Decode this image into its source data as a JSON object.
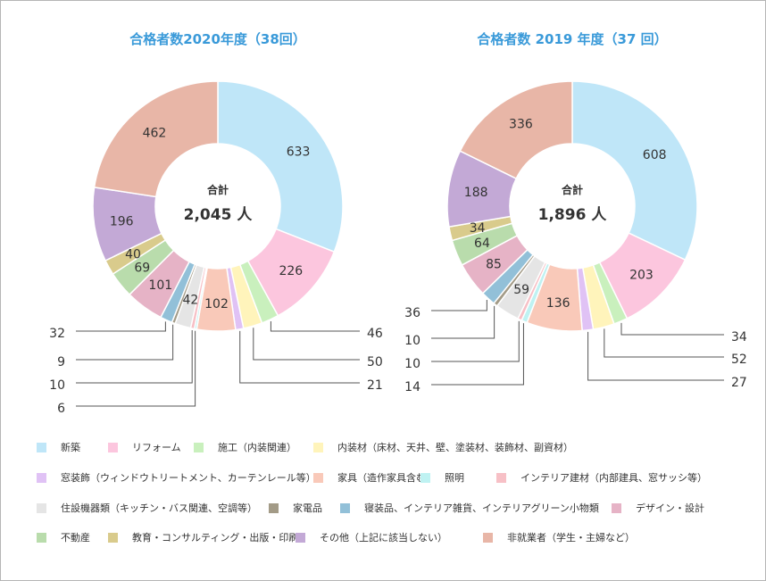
{
  "chart_data": [
    {
      "type": "pie",
      "title": "合格者数2020年度（38回）",
      "center_label": "合計",
      "center_total": "2,045 人",
      "categories": [
        "新築",
        "リフォーム",
        "施工（内装関連）",
        "内装材（床材、天井、壁、塗装材、装飾材、副資材）",
        "窓装飾（ウィンドウトリートメント、カーテンレール等）",
        "家具（造作家具含む）",
        "照明",
        "インテリア建材（内部建具、窓サッシ等）",
        "住設機器類（キッチン・バス関連、空調等）",
        "家電品",
        "寝装品、インテリア雑貨、インテリアグリーン小物類",
        "デザイン・設計",
        "不動産",
        "教育・コンサルティング・出版・印刷",
        "その他（上記に該当しない）",
        "非就業者（学生・主婦など）"
      ],
      "values": [
        633,
        226,
        46,
        50,
        21,
        102,
        6,
        10,
        42,
        9,
        32,
        101,
        69,
        40,
        196,
        462
      ]
    },
    {
      "type": "pie",
      "title": "合格者数 2019 年度（37 回）",
      "center_label": "合計",
      "center_total": "1,896 人",
      "categories": [
        "新築",
        "リフォーム",
        "施工（内装関連）",
        "内装材（床材、天井、壁、塗装材、装飾材、副資材）",
        "窓装飾（ウィンドウトリートメント、カーテンレール等）",
        "家具（造作家具含む）",
        "照明",
        "インテリア建材（内部建具、窓サッシ等）",
        "住設機器類（キッチン・バス関連、空調等）",
        "家電品",
        "寝装品、インテリア雑貨、インテリアグリーン小物類",
        "デザイン・設計",
        "不動産",
        "教育・コンサルティング・出版・印刷",
        "その他（上記に該当しない）",
        "非就業者（学生・主婦など）"
      ],
      "values": [
        608,
        203,
        34,
        52,
        27,
        136,
        14,
        10,
        59,
        10,
        36,
        85,
        64,
        34,
        188,
        336
      ]
    }
  ],
  "legend": [
    "新築",
    "リフォーム",
    "施工（内装関連）",
    "内装材（床材、天井、壁、塗装材、装飾材、副資材）",
    "窓装飾（ウィンドウトリートメント、カーテンレール等）",
    "家具（造作家具含む）",
    "照明",
    "インテリア建材（内部建具、窓サッシ等）",
    "住設機器類（キッチン・バス関連、空調等）",
    "家電品",
    "寝装品、インテリア雑貨、インテリアグリーン小物類",
    "デザイン・設計",
    "不動産",
    "教育・コンサルティング・出版・印刷",
    "その他（上記に該当しない）",
    "非就業者（学生・主婦など）"
  ],
  "colors": [
    "#bfe6f8",
    "#fcc6de",
    "#c9f0bd",
    "#fff4bb",
    "#e0c2f5",
    "#f9c9b9",
    "#bff2f2",
    "#f7c0c6",
    "#e5e5e5",
    "#a39b87",
    "#92c0d8",
    "#e6b3c6",
    "#b9dcac",
    "#d9cb8c",
    "#c3a9d6",
    "#e8b6a7"
  ],
  "title_color": "#3a9ad9"
}
